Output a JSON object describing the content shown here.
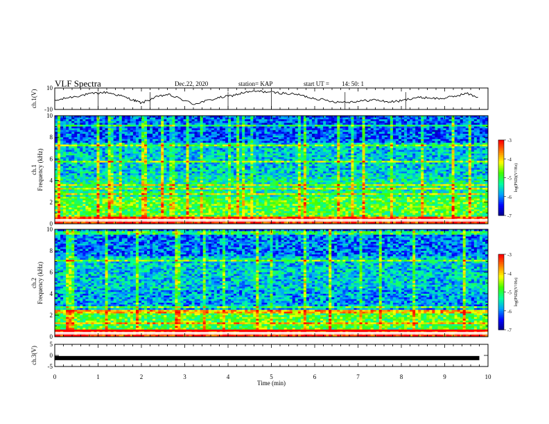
{
  "header": {
    "title": "VLF Spectra",
    "date": "Dec.22, 2020",
    "station": "station= KAP",
    "start_label": "start  UT =",
    "start_time": "14: 50: 1"
  },
  "chart_data": [
    {
      "id": "ch1-waveform",
      "type": "line",
      "ylabel": "ch.1(V)",
      "ylim": [
        -10,
        10
      ],
      "yticks": [
        "10",
        "-10"
      ],
      "xlim": [
        0,
        10
      ],
      "series": [
        {
          "x": [
            0,
            0.3,
            0.6,
            0.9,
            1.2,
            1.5,
            1.8,
            2.0,
            2.3,
            2.6,
            2.9,
            3.2,
            3.5,
            3.8,
            4.1,
            4.4,
            4.7,
            5.0,
            5.3,
            5.6,
            5.9,
            6.2,
            6.5,
            6.8,
            7.1,
            7.4,
            7.7,
            8.0,
            8.3,
            8.6,
            8.9,
            9.2,
            9.5,
            9.8
          ],
          "y": [
            -2,
            1,
            3,
            5,
            6,
            3,
            -1,
            -4,
            1,
            4,
            0,
            -5,
            -2,
            1,
            3,
            6,
            7,
            6,
            5,
            4,
            1,
            -1,
            -3,
            -3,
            -2,
            -1,
            -3,
            -2,
            1,
            1,
            0,
            2,
            5,
            1
          ]
        }
      ]
    },
    {
      "id": "ch1-spectrogram",
      "type": "heatmap",
      "ylabel": "ch.1  Frequency (kHz)",
      "ylim": [
        0,
        10
      ],
      "yticks": [
        "0",
        "2",
        "4",
        "6",
        "8",
        "10"
      ],
      "xlim": [
        0,
        10
      ],
      "colorbar": {
        "label": "log(PSD)(V²/Hz)",
        "range": [
          -7,
          -3
        ],
        "ticks": [
          "-3",
          "-4",
          "-5",
          "-6",
          "-7"
        ]
      }
    },
    {
      "id": "ch2-spectrogram",
      "type": "heatmap",
      "ylabel": "ch.2  Frequency (kHz)",
      "ylim": [
        0,
        10
      ],
      "yticks": [
        "0",
        "2",
        "4",
        "6",
        "8",
        "10"
      ],
      "xlim": [
        0,
        10
      ],
      "colorbar": {
        "label": "log(PSD)(V²/Hz)",
        "range": [
          -7,
          -3
        ],
        "ticks": [
          "-3",
          "-4",
          "-5",
          "-6",
          "-7"
        ]
      }
    },
    {
      "id": "ch3-waveform",
      "type": "line",
      "ylabel": "ch.3(V)",
      "ylim": [
        -5,
        5
      ],
      "yticks": [
        "5",
        "0",
        "-5"
      ],
      "xlim": [
        0,
        10
      ],
      "xlabel": "Time (min)",
      "xticks": [
        "0",
        "1",
        "2",
        "3",
        "4",
        "5",
        "6",
        "7",
        "8",
        "9",
        "10"
      ],
      "series": [
        {
          "x": [
            0,
            9.8
          ],
          "y": [
            -1.2,
            -1.2
          ]
        }
      ]
    }
  ],
  "colors": {
    "colormap": [
      "#000080",
      "#0000ff",
      "#00a0ff",
      "#00ffa0",
      "#40ff00",
      "#ffff00",
      "#ff8000",
      "#ff0000",
      "#ffffff"
    ]
  }
}
